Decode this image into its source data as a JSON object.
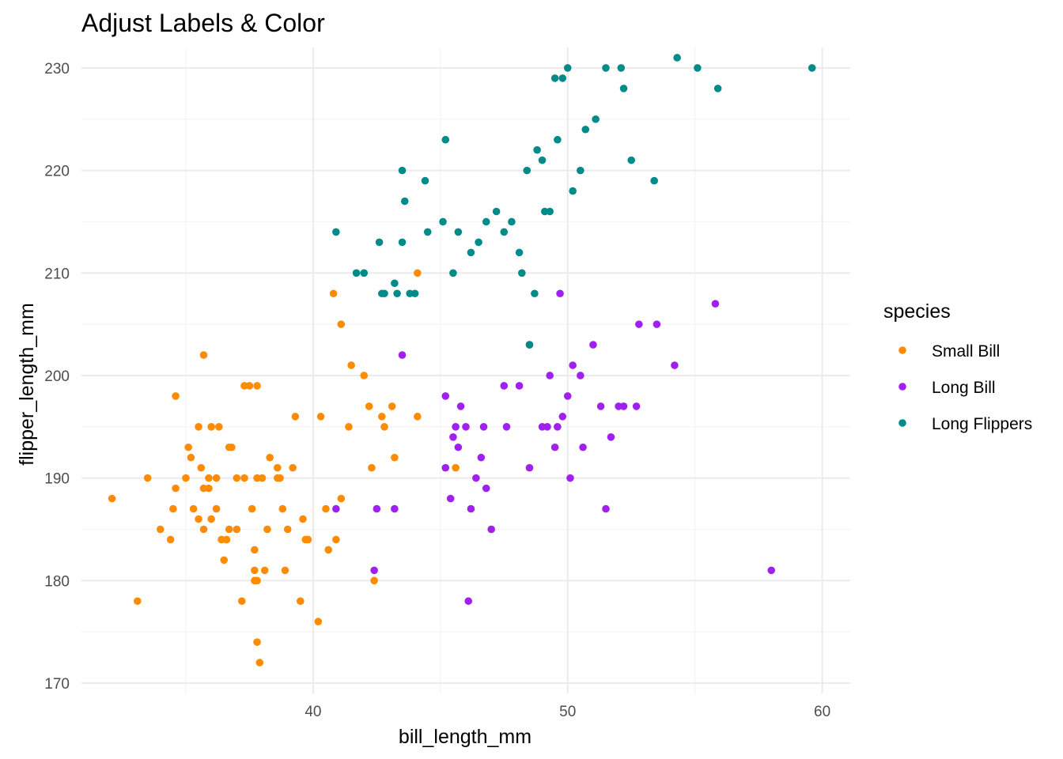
{
  "chart_data": {
    "type": "scatter",
    "title": "Adjust Labels & Color",
    "xlabel": "bill_length_mm",
    "ylabel": "flipper_length_mm",
    "xlim": [
      30.9,
      61.1
    ],
    "ylim": [
      169.0,
      232.0
    ],
    "x_ticks": [
      40,
      50,
      60
    ],
    "x_tick_labels": [
      "40",
      "50",
      "60"
    ],
    "y_ticks": [
      170,
      180,
      190,
      200,
      210,
      220,
      230
    ],
    "y_tick_labels": [
      "170",
      "180",
      "190",
      "200",
      "210",
      "220",
      "230"
    ],
    "grid": true,
    "legend": {
      "title": "species",
      "position": "right"
    },
    "series": [
      {
        "name": "Small Bill",
        "color": "#FF8C00",
        "points": [
          [
            32.1,
            188
          ],
          [
            33.1,
            178
          ],
          [
            33.5,
            190
          ],
          [
            34.0,
            185
          ],
          [
            34.4,
            184
          ],
          [
            34.5,
            187
          ],
          [
            34.6,
            189
          ],
          [
            34.6,
            198
          ],
          [
            35.0,
            190
          ],
          [
            35.1,
            193
          ],
          [
            35.2,
            192
          ],
          [
            35.3,
            187
          ],
          [
            35.5,
            186
          ],
          [
            35.5,
            195
          ],
          [
            35.6,
            191
          ],
          [
            35.7,
            185
          ],
          [
            35.7,
            189
          ],
          [
            35.7,
            202
          ],
          [
            35.9,
            190
          ],
          [
            35.9,
            189
          ],
          [
            36.0,
            186
          ],
          [
            36.0,
            195
          ],
          [
            36.2,
            187
          ],
          [
            36.2,
            190
          ],
          [
            36.3,
            195
          ],
          [
            36.4,
            184
          ],
          [
            36.5,
            182
          ],
          [
            36.6,
            184
          ],
          [
            36.7,
            185
          ],
          [
            36.7,
            193
          ],
          [
            36.8,
            193
          ],
          [
            37.0,
            185
          ],
          [
            37.0,
            190
          ],
          [
            37.2,
            178
          ],
          [
            37.3,
            190
          ],
          [
            37.3,
            199
          ],
          [
            37.5,
            199
          ],
          [
            37.6,
            187
          ],
          [
            37.7,
            180
          ],
          [
            37.7,
            181
          ],
          [
            37.7,
            183
          ],
          [
            37.8,
            174
          ],
          [
            37.8,
            180
          ],
          [
            37.8,
            190
          ],
          [
            37.8,
            199
          ],
          [
            37.9,
            172
          ],
          [
            38.0,
            190
          ],
          [
            38.1,
            181
          ],
          [
            38.2,
            185
          ],
          [
            38.3,
            192
          ],
          [
            38.6,
            190
          ],
          [
            38.6,
            191
          ],
          [
            38.7,
            190
          ],
          [
            38.8,
            187
          ],
          [
            38.9,
            181
          ],
          [
            39.0,
            185
          ],
          [
            39.2,
            191
          ],
          [
            39.3,
            196
          ],
          [
            39.5,
            178
          ],
          [
            39.6,
            186
          ],
          [
            39.7,
            184
          ],
          [
            39.8,
            184
          ],
          [
            40.2,
            176
          ],
          [
            40.3,
            196
          ],
          [
            40.5,
            187
          ],
          [
            40.6,
            183
          ],
          [
            40.8,
            208
          ],
          [
            40.9,
            184
          ],
          [
            41.1,
            188
          ],
          [
            41.1,
            205
          ],
          [
            41.4,
            195
          ],
          [
            41.5,
            201
          ],
          [
            42.0,
            200
          ],
          [
            42.2,
            197
          ],
          [
            42.3,
            191
          ],
          [
            42.4,
            180
          ],
          [
            42.7,
            196
          ],
          [
            42.8,
            195
          ],
          [
            43.1,
            197
          ],
          [
            43.2,
            192
          ],
          [
            44.1,
            196
          ],
          [
            44.1,
            210
          ],
          [
            45.6,
            191
          ]
        ]
      },
      {
        "name": "Long Bill",
        "color": "#A020F0",
        "points": [
          [
            40.9,
            187
          ],
          [
            42.4,
            181
          ],
          [
            42.5,
            187
          ],
          [
            43.2,
            187
          ],
          [
            43.5,
            202
          ],
          [
            45.2,
            191
          ],
          [
            45.2,
            198
          ],
          [
            45.4,
            188
          ],
          [
            45.5,
            194
          ],
          [
            45.6,
            195
          ],
          [
            45.7,
            193
          ],
          [
            45.8,
            197
          ],
          [
            46.0,
            195
          ],
          [
            46.1,
            178
          ],
          [
            46.2,
            187
          ],
          [
            46.4,
            190
          ],
          [
            46.6,
            192
          ],
          [
            46.7,
            195
          ],
          [
            46.8,
            189
          ],
          [
            47.0,
            185
          ],
          [
            47.5,
            199
          ],
          [
            47.6,
            195
          ],
          [
            48.1,
            199
          ],
          [
            48.5,
            191
          ],
          [
            48.5,
            203
          ],
          [
            49.0,
            195
          ],
          [
            49.2,
            195
          ],
          [
            49.3,
            200
          ],
          [
            49.5,
            193
          ],
          [
            49.6,
            195
          ],
          [
            49.7,
            208
          ],
          [
            49.8,
            196
          ],
          [
            50.0,
            198
          ],
          [
            50.1,
            190
          ],
          [
            50.2,
            201
          ],
          [
            50.5,
            200
          ],
          [
            50.6,
            193
          ],
          [
            51.0,
            203
          ],
          [
            51.3,
            197
          ],
          [
            51.5,
            187
          ],
          [
            51.7,
            194
          ],
          [
            52.0,
            197
          ],
          [
            52.2,
            197
          ],
          [
            52.7,
            197
          ],
          [
            52.8,
            205
          ],
          [
            53.5,
            205
          ],
          [
            54.2,
            201
          ],
          [
            55.8,
            207
          ],
          [
            58.0,
            181
          ]
        ]
      },
      {
        "name": "Long Flippers",
        "color": "#008B8B",
        "points": [
          [
            40.9,
            214
          ],
          [
            41.7,
            210
          ],
          [
            42.0,
            210
          ],
          [
            42.6,
            213
          ],
          [
            42.7,
            208
          ],
          [
            42.8,
            208
          ],
          [
            43.2,
            209
          ],
          [
            43.3,
            208
          ],
          [
            43.5,
            213
          ],
          [
            43.5,
            220
          ],
          [
            43.6,
            217
          ],
          [
            43.8,
            208
          ],
          [
            44.0,
            208
          ],
          [
            44.4,
            219
          ],
          [
            44.5,
            214
          ],
          [
            45.1,
            215
          ],
          [
            45.2,
            223
          ],
          [
            45.5,
            210
          ],
          [
            45.7,
            214
          ],
          [
            46.2,
            212
          ],
          [
            46.5,
            213
          ],
          [
            46.8,
            215
          ],
          [
            47.2,
            216
          ],
          [
            47.5,
            214
          ],
          [
            47.8,
            215
          ],
          [
            48.1,
            212
          ],
          [
            48.2,
            210
          ],
          [
            48.4,
            220
          ],
          [
            48.5,
            203
          ],
          [
            48.7,
            208
          ],
          [
            48.8,
            222
          ],
          [
            49.0,
            221
          ],
          [
            49.1,
            216
          ],
          [
            49.3,
            216
          ],
          [
            49.5,
            229
          ],
          [
            49.6,
            223
          ],
          [
            49.8,
            229
          ],
          [
            50.0,
            230
          ],
          [
            50.2,
            218
          ],
          [
            50.5,
            220
          ],
          [
            50.7,
            224
          ],
          [
            51.1,
            225
          ],
          [
            51.5,
            230
          ],
          [
            52.1,
            230
          ],
          [
            52.2,
            228
          ],
          [
            52.5,
            221
          ],
          [
            53.4,
            219
          ],
          [
            54.3,
            231
          ],
          [
            55.1,
            230
          ],
          [
            55.9,
            228
          ],
          [
            59.6,
            230
          ]
        ]
      }
    ]
  }
}
